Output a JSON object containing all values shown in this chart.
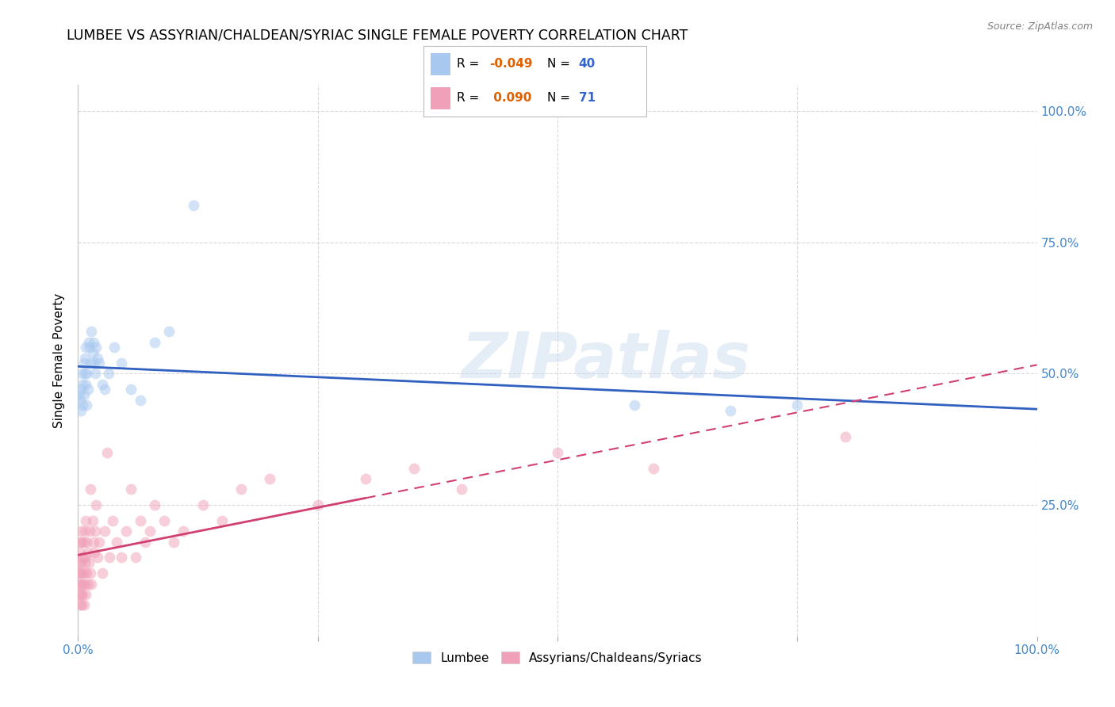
{
  "title": "LUMBEE VS ASSYRIAN/CHALDEAN/SYRIAC SINGLE FEMALE POVERTY CORRELATION CHART",
  "source": "Source: ZipAtlas.com",
  "ylabel": "Single Female Poverty",
  "lumbee_R": -0.049,
  "lumbee_N": 40,
  "assyrian_R": 0.09,
  "assyrian_N": 71,
  "lumbee_color": "#a8c8f0",
  "assyrian_color": "#f0a0b8",
  "lumbee_line_color": "#3060c0",
  "assyrian_line_color": "#d04070",
  "assyrian_line_dash": [
    6,
    4
  ],
  "background_color": "#ffffff",
  "grid_color": "#d8d8d8",
  "marker_size": 100,
  "marker_alpha": 0.5,
  "title_fontsize": 12.5,
  "axis_label_fontsize": 11,
  "tick_fontsize": 11,
  "lumbee_x": [
    0.001,
    0.002,
    0.003,
    0.003,
    0.004,
    0.005,
    0.005,
    0.006,
    0.006,
    0.007,
    0.007,
    0.008,
    0.008,
    0.009,
    0.009,
    0.01,
    0.011,
    0.012,
    0.013,
    0.014,
    0.015,
    0.016,
    0.017,
    0.018,
    0.019,
    0.02,
    0.022,
    0.025,
    0.028,
    0.032,
    0.038,
    0.045,
    0.055,
    0.065,
    0.08,
    0.095,
    0.12,
    0.58,
    0.68,
    0.75
  ],
  "lumbee_y": [
    0.46,
    0.45,
    0.47,
    0.43,
    0.5,
    0.44,
    0.48,
    0.52,
    0.46,
    0.5,
    0.53,
    0.48,
    0.55,
    0.44,
    0.5,
    0.47,
    0.56,
    0.55,
    0.52,
    0.58,
    0.54,
    0.56,
    0.52,
    0.5,
    0.55,
    0.53,
    0.52,
    0.48,
    0.47,
    0.5,
    0.55,
    0.52,
    0.47,
    0.45,
    0.56,
    0.58,
    0.82,
    0.44,
    0.43,
    0.44
  ],
  "assyrian_x": [
    0.0005,
    0.001,
    0.001,
    0.001,
    0.002,
    0.002,
    0.002,
    0.002,
    0.003,
    0.003,
    0.003,
    0.003,
    0.004,
    0.004,
    0.004,
    0.005,
    0.005,
    0.005,
    0.006,
    0.006,
    0.006,
    0.007,
    0.007,
    0.007,
    0.008,
    0.008,
    0.008,
    0.009,
    0.009,
    0.01,
    0.01,
    0.011,
    0.012,
    0.013,
    0.013,
    0.014,
    0.015,
    0.016,
    0.017,
    0.018,
    0.019,
    0.02,
    0.022,
    0.025,
    0.028,
    0.03,
    0.033,
    0.036,
    0.04,
    0.045,
    0.05,
    0.055,
    0.06,
    0.065,
    0.07,
    0.075,
    0.08,
    0.09,
    0.1,
    0.11,
    0.13,
    0.15,
    0.17,
    0.2,
    0.25,
    0.3,
    0.35,
    0.4,
    0.5,
    0.6,
    0.8
  ],
  "assyrian_y": [
    0.12,
    0.1,
    0.14,
    0.08,
    0.16,
    0.12,
    0.06,
    0.18,
    0.1,
    0.14,
    0.08,
    0.2,
    0.12,
    0.06,
    0.18,
    0.1,
    0.15,
    0.08,
    0.12,
    0.18,
    0.06,
    0.14,
    0.1,
    0.2,
    0.08,
    0.15,
    0.22,
    0.12,
    0.18,
    0.1,
    0.16,
    0.14,
    0.2,
    0.12,
    0.28,
    0.1,
    0.22,
    0.18,
    0.16,
    0.2,
    0.25,
    0.15,
    0.18,
    0.12,
    0.2,
    0.35,
    0.15,
    0.22,
    0.18,
    0.15,
    0.2,
    0.28,
    0.15,
    0.22,
    0.18,
    0.2,
    0.25,
    0.22,
    0.18,
    0.2,
    0.25,
    0.22,
    0.28,
    0.3,
    0.25,
    0.3,
    0.32,
    0.28,
    0.35,
    0.32,
    0.38
  ],
  "xlim": [
    0.0,
    1.0
  ],
  "ylim": [
    0.0,
    1.05
  ],
  "xticks": [
    0.0,
    0.25,
    0.5,
    0.75,
    1.0
  ],
  "xtick_labels": [
    "0.0%",
    "",
    "",
    "",
    "100.0%"
  ],
  "yticks": [
    0.0,
    0.25,
    0.5,
    0.75,
    1.0
  ],
  "ytick_labels_right": [
    "",
    "25.0%",
    "50.0%",
    "75.0%",
    "100.0%"
  ]
}
